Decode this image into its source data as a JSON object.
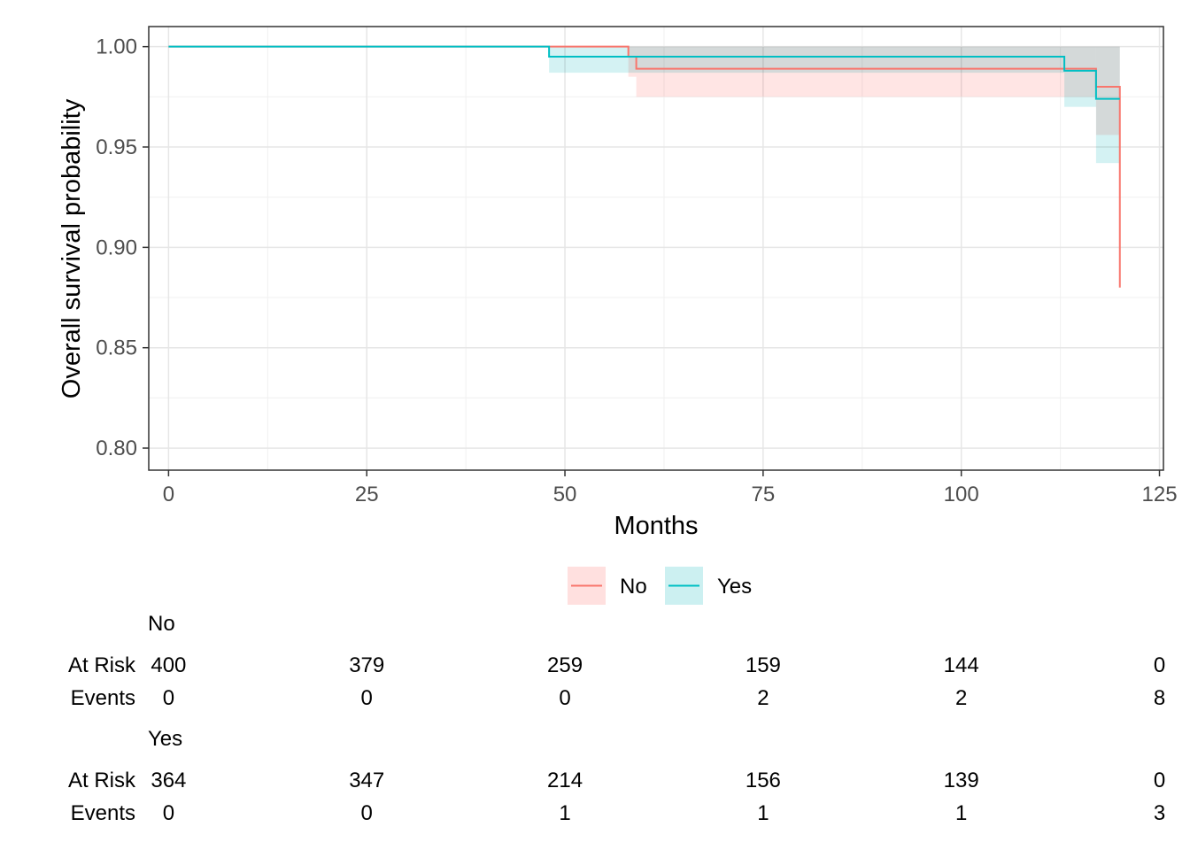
{
  "chart_data": {
    "type": "line",
    "subtype": "kaplan-meier",
    "xlabel": "Months",
    "ylabel": "Overall survival probability",
    "xlim": [
      -2.5,
      125.5
    ],
    "ylim": [
      0.789,
      1.01
    ],
    "x_ticks": [
      0,
      25,
      50,
      75,
      100,
      125
    ],
    "x_tick_labels": [
      "0",
      "25",
      "50",
      "75",
      "100",
      "125"
    ],
    "y_ticks": [
      0.8,
      0.85,
      0.9,
      0.95,
      1.0
    ],
    "y_tick_labels": [
      "0.80",
      "0.85",
      "0.90",
      "0.95",
      "1.00"
    ],
    "grid": true,
    "legend_position": "bottom",
    "series": [
      {
        "name": "No",
        "color": "#F8766D",
        "band_color": "#FFE0DF",
        "x": [
          0,
          58,
          59,
          113,
          117,
          120
        ],
        "y": [
          1.0,
          0.995,
          0.989,
          0.989,
          0.98,
          0.88
        ],
        "lower": [
          1.0,
          0.985,
          0.975,
          0.975,
          0.956,
          0.88
        ],
        "upper": [
          1.0,
          1.0,
          1.0,
          1.0,
          1.0,
          1.0
        ]
      },
      {
        "name": "Yes",
        "color": "#00BFC4",
        "band_color": "#CCF0F1",
        "x": [
          0,
          48,
          58,
          113,
          117,
          120
        ],
        "y": [
          1.0,
          0.995,
          0.995,
          0.988,
          0.974,
          0.974
        ],
        "lower": [
          1.0,
          0.987,
          0.987,
          0.97,
          0.942,
          0.942
        ],
        "upper": [
          1.0,
          1.0,
          1.0,
          1.0,
          1.0,
          1.0
        ]
      }
    ],
    "risk_table": {
      "time_points": [
        0,
        25,
        50,
        75,
        100,
        125
      ],
      "row_labels": [
        "At Risk",
        "Events"
      ],
      "groups": [
        {
          "name": "No",
          "at_risk": [
            "400",
            "379",
            "259",
            "159",
            "144",
            "0"
          ],
          "events": [
            "0",
            "0",
            "0",
            "2",
            "2",
            "8"
          ]
        },
        {
          "name": "Yes",
          "at_risk": [
            "364",
            "347",
            "214",
            "156",
            "139",
            "0"
          ],
          "events": [
            "0",
            "0",
            "1",
            "1",
            "1",
            "3"
          ]
        }
      ]
    }
  }
}
